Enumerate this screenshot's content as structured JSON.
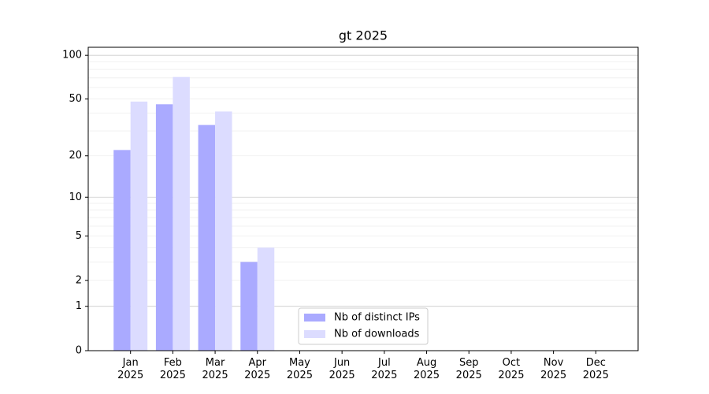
{
  "chart_data": {
    "type": "bar",
    "title": "gt 2025",
    "categories": [
      "Jan\n2025",
      "Feb\n2025",
      "Mar\n2025",
      "Apr\n2025",
      "May\n2025",
      "Jun\n2025",
      "Jul\n2025",
      "Aug\n2025",
      "Sep\n2025",
      "Oct\n2025",
      "Nov\n2025",
      "Dec\n2025"
    ],
    "series": [
      {
        "name": "Nb of distinct IPs",
        "color": "#aaaaff",
        "values": [
          22,
          46,
          33,
          3,
          0,
          0,
          0,
          0,
          0,
          0,
          0,
          0
        ]
      },
      {
        "name": "Nb of downloads",
        "color": "#dcdcff",
        "values": [
          48,
          71,
          41,
          4,
          0,
          0,
          0,
          0,
          0,
          0,
          0,
          0
        ]
      }
    ],
    "yscale": "log1p",
    "ylim": [
      0,
      113.5
    ],
    "yticks": [
      0,
      1,
      2,
      5,
      10,
      20,
      50,
      100
    ],
    "minor_yticks": [
      3,
      4,
      6,
      7,
      8,
      9,
      30,
      40,
      60,
      70,
      80,
      90
    ],
    "grid": true,
    "legend": "lower center"
  }
}
